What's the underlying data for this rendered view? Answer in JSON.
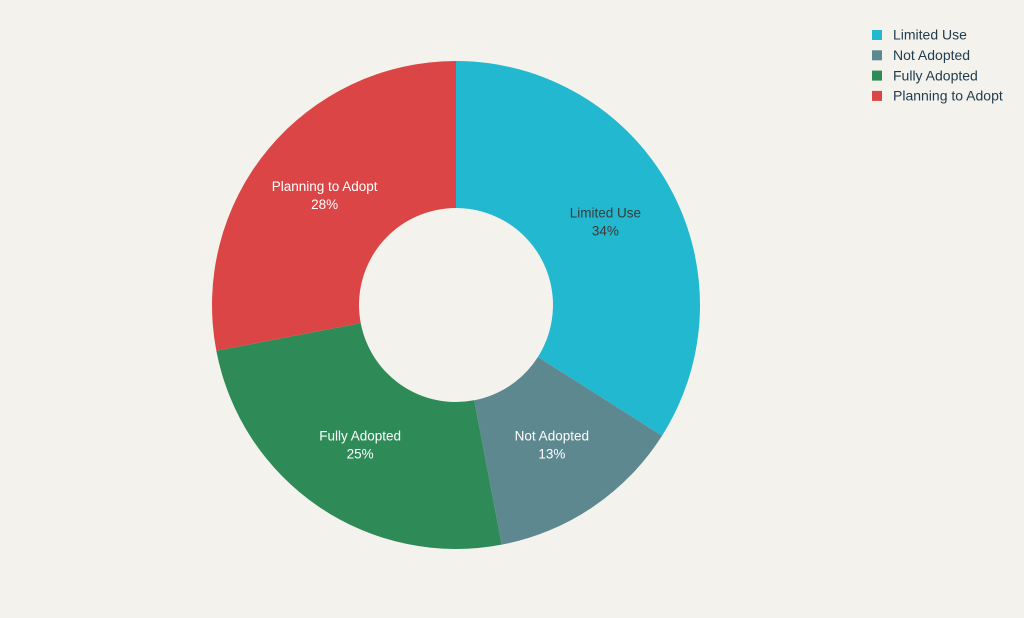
{
  "chart_data": {
    "type": "donut",
    "categories": [
      "Limited Use",
      "Not Adopted",
      "Fully Adopted",
      "Planning to Adopt"
    ],
    "values": [
      34,
      13,
      25,
      28
    ],
    "value_labels": [
      "34%",
      "13%",
      "25%",
      "28%"
    ],
    "colors": [
      "#22b8cf",
      "#5e8890",
      "#2e8b57",
      "#db4545"
    ],
    "label_colors": [
      "#3a3a3a",
      "#ffffff",
      "#ffffff",
      "#ffffff"
    ],
    "legend": "top-right"
  }
}
